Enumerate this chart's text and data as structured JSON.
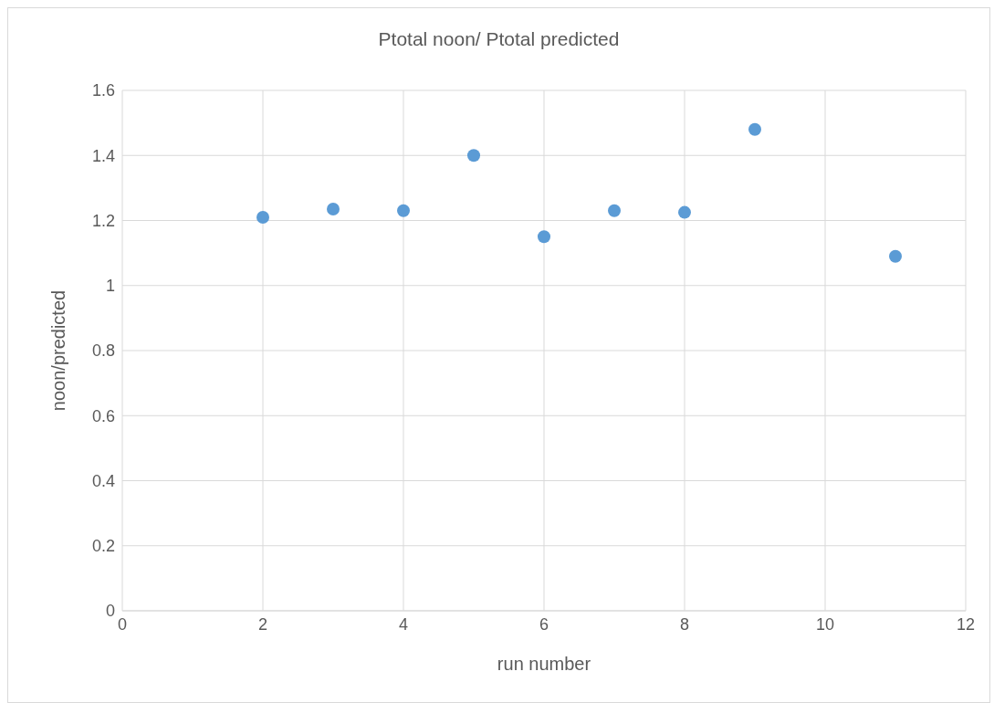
{
  "chart_data": {
    "type": "scatter",
    "title": "Ptotal noon/ Ptotal predicted",
    "xlabel": "run number",
    "ylabel": "noon/predicted",
    "x": [
      2,
      3,
      4,
      5,
      6,
      7,
      8,
      9,
      11
    ],
    "series": [
      {
        "color": "#5b9bd5",
        "values": [
          1.21,
          1.235,
          1.23,
          1.4,
          1.15,
          1.23,
          1.225,
          1.48,
          1.09
        ]
      }
    ],
    "xlim": [
      0,
      12
    ],
    "xticks": [
      0,
      2,
      4,
      6,
      8,
      10,
      12
    ],
    "ylim": [
      0,
      1.6
    ],
    "yticks": [
      0,
      0.2,
      0.4,
      0.6,
      0.8,
      1,
      1.2,
      1.4,
      1.6
    ],
    "grid": true,
    "marker": "circle"
  }
}
